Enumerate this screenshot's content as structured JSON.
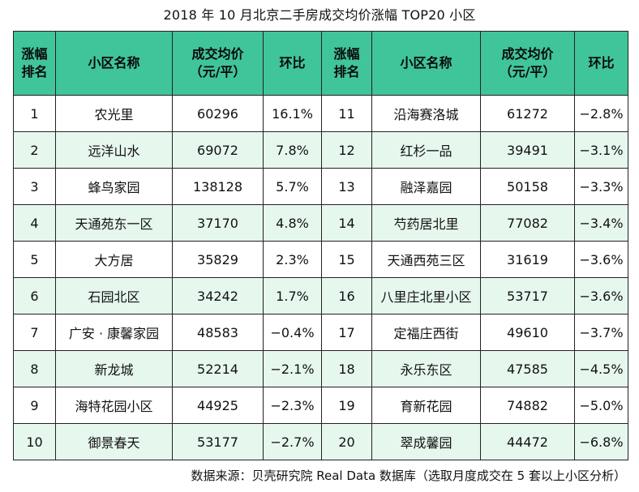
{
  "title": "2018 年 10 月北京二手房成交均价涨幅 TOP20 小区",
  "header": {
    "rank": [
      "涨幅",
      "排名"
    ],
    "name": "小区名称",
    "price": [
      "成交均价",
      "（元/平）"
    ],
    "change": "环比"
  },
  "rows": [
    {
      "left": {
        "rank": "1",
        "name": "农光里",
        "price": "60296",
        "change": "16.1%"
      },
      "right": {
        "rank": "11",
        "name": "沿海赛洛城",
        "price": "61272",
        "change": "−2.8%"
      }
    },
    {
      "left": {
        "rank": "2",
        "name": "远洋山水",
        "price": "69072",
        "change": "7.8%"
      },
      "right": {
        "rank": "12",
        "name": "红杉一品",
        "price": "39491",
        "change": "−3.1%"
      }
    },
    {
      "left": {
        "rank": "3",
        "name": "蜂鸟家园",
        "price": "138128",
        "change": "5.7%"
      },
      "right": {
        "rank": "13",
        "name": "融泽嘉园",
        "price": "50158",
        "change": "−3.3%"
      }
    },
    {
      "left": {
        "rank": "4",
        "name": "天通苑东一区",
        "price": "37170",
        "change": "4.8%"
      },
      "right": {
        "rank": "14",
        "name": "芍药居北里",
        "price": "77082",
        "change": "−3.4%"
      }
    },
    {
      "left": {
        "rank": "5",
        "name": "大方居",
        "price": "35829",
        "change": "2.3%"
      },
      "right": {
        "rank": "15",
        "name": "天通西苑三区",
        "price": "31619",
        "change": "−3.6%"
      }
    },
    {
      "left": {
        "rank": "6",
        "name": "石园北区",
        "price": "34242",
        "change": "1.7%"
      },
      "right": {
        "rank": "16",
        "name": "八里庄北里小区",
        "price": "53717",
        "change": "−3.6%"
      }
    },
    {
      "left": {
        "rank": "7",
        "name": "广安 · 康馨家园",
        "price": "48583",
        "change": "−0.4%"
      },
      "right": {
        "rank": "17",
        "name": "定福庄西街",
        "price": "49610",
        "change": "−3.7%"
      }
    },
    {
      "left": {
        "rank": "8",
        "name": "新龙城",
        "price": "52214",
        "change": "−2.1%"
      },
      "right": {
        "rank": "18",
        "name": "永乐东区",
        "price": "47585",
        "change": "−4.5%"
      }
    },
    {
      "left": {
        "rank": "9",
        "name": "海特花园小区",
        "price": "44925",
        "change": "−2.3%"
      },
      "right": {
        "rank": "19",
        "name": "育新花园",
        "price": "74882",
        "change": "−5.0%"
      }
    },
    {
      "left": {
        "rank": "10",
        "name": "御景春天",
        "price": "53177",
        "change": "−2.7%"
      },
      "right": {
        "rank": "20",
        "name": "翠成馨园",
        "price": "44472",
        "change": "−6.8%"
      }
    }
  ],
  "footer": "数据来源：贝壳研究院 Real Data 数据库（选取月度成交在 5 套以上小区分析）",
  "colors": {
    "header_bg": "#40c49a",
    "stripe_bg": "#e6f7ee",
    "border": "#222222"
  }
}
